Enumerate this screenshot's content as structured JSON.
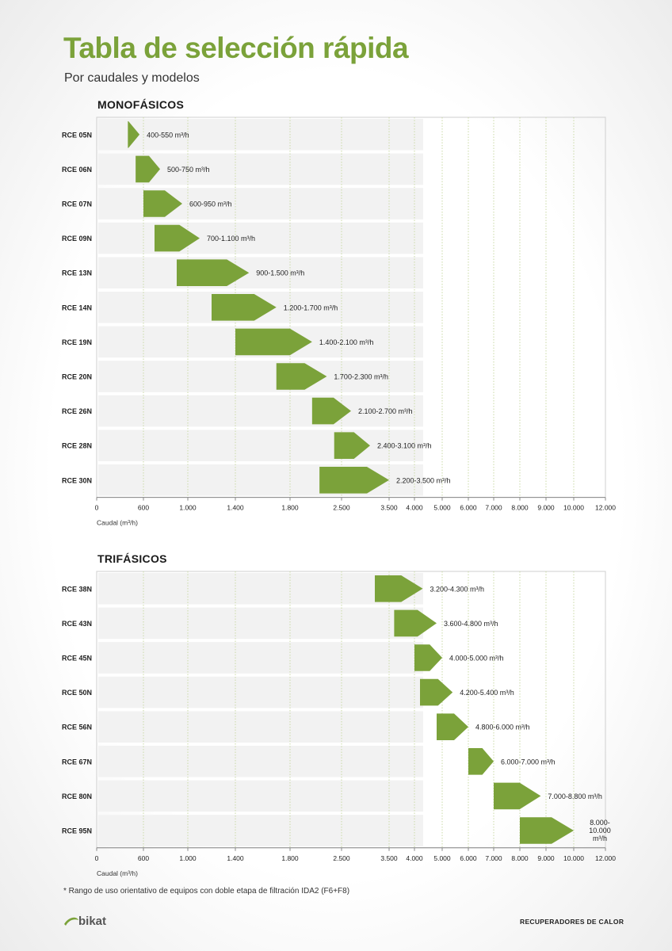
{
  "page": {
    "title": "Tabla de selección rápida",
    "subtitle": "Por caudales y modelos",
    "footnote": "* Rango de uso orientativo de equipos con doble etapa de filtración IDA2 (F6+F8)",
    "brand": "bikat",
    "footer_right": "RECUPERADORES DE CALOR"
  },
  "colors": {
    "bar": "#7ba23a",
    "row_bg": "#f2f2f2",
    "grid": "#c9d9a6",
    "axis": "#888888"
  },
  "chart_data": [
    {
      "type": "bar",
      "title": "MONOFÁSICOS",
      "xlabel": "Caudal (m³/h)",
      "x_ticks": [
        "0",
        "600",
        "1.000",
        "1.400",
        "1.800",
        "2.500",
        "3.500",
        "4.000",
        "5.000",
        "6.000",
        "7.000",
        "8.000",
        "9.000",
        "10.000",
        "12.000"
      ],
      "x_tick_values": [
        0,
        600,
        1000,
        1400,
        1800,
        2500,
        3500,
        4000,
        5000,
        6000,
        7000,
        8000,
        9000,
        10000,
        12000
      ],
      "xlim": [
        0,
        12000
      ],
      "grid": true,
      "categories": [
        "RCE 05N",
        "RCE 06N",
        "RCE 07N",
        "RCE 09N",
        "RCE 13N",
        "RCE 14N",
        "RCE 19N",
        "RCE 20N",
        "RCE 26N",
        "RCE 28N",
        "RCE 30N"
      ],
      "ranges": [
        [
          400,
          550
        ],
        [
          500,
          750
        ],
        [
          600,
          950
        ],
        [
          700,
          1100
        ],
        [
          900,
          1500
        ],
        [
          1200,
          1700
        ],
        [
          1400,
          2100
        ],
        [
          1700,
          2300
        ],
        [
          2100,
          2700
        ],
        [
          2400,
          3100
        ],
        [
          2200,
          3500
        ]
      ],
      "labels": [
        [
          "400-550 m³/h"
        ],
        [
          "500-750 m³/h"
        ],
        [
          "600-950 m³/h"
        ],
        [
          "700-1.100 m³/h"
        ],
        [
          "900-1.500 m³/h"
        ],
        [
          "1.200-1.700 m³/h"
        ],
        [
          "1.400-2.100 m³/h"
        ],
        [
          "1.700-2.300 m³/h"
        ],
        [
          "2.100-2.700 m³/h"
        ],
        [
          "2.400-3.100 m³/h"
        ],
        [
          "2.200-3.500 m³/h"
        ]
      ]
    },
    {
      "type": "bar",
      "title": "TRIFÁSICOS",
      "xlabel": "Caudal (m³/h)",
      "x_ticks": [
        "0",
        "600",
        "1.000",
        "1.400",
        "1.800",
        "2.500",
        "3.500",
        "4.000",
        "5.000",
        "6.000",
        "7.000",
        "8.000",
        "9.000",
        "10.000",
        "12.000"
      ],
      "x_tick_values": [
        0,
        600,
        1000,
        1400,
        1800,
        2500,
        3500,
        4000,
        5000,
        6000,
        7000,
        8000,
        9000,
        10000,
        12000
      ],
      "xlim": [
        0,
        12000
      ],
      "grid": true,
      "categories": [
        "RCE 38N",
        "RCE 43N",
        "RCE 45N",
        "RCE 50N",
        "RCE 56N",
        "RCE 67N",
        "RCE 80N",
        "RCE 95N"
      ],
      "ranges": [
        [
          3200,
          4300
        ],
        [
          3600,
          4800
        ],
        [
          4000,
          5000
        ],
        [
          4200,
          5400
        ],
        [
          4800,
          6000
        ],
        [
          6000,
          7000
        ],
        [
          7000,
          8800
        ],
        [
          8000,
          10000
        ]
      ],
      "labels": [
        [
          "3.200-4.300 m³/h"
        ],
        [
          "3.600-4.800 m³/h"
        ],
        [
          "4.000-5.000 m³/h"
        ],
        [
          "4.200-5.400 m³/h"
        ],
        [
          "4.800-6.000 m³/h"
        ],
        [
          "6.000-7.000 m³/h"
        ],
        [
          "7.000-8.800 m³/h"
        ],
        [
          "8.000-",
          "10.000",
          "m³/h"
        ]
      ]
    }
  ]
}
